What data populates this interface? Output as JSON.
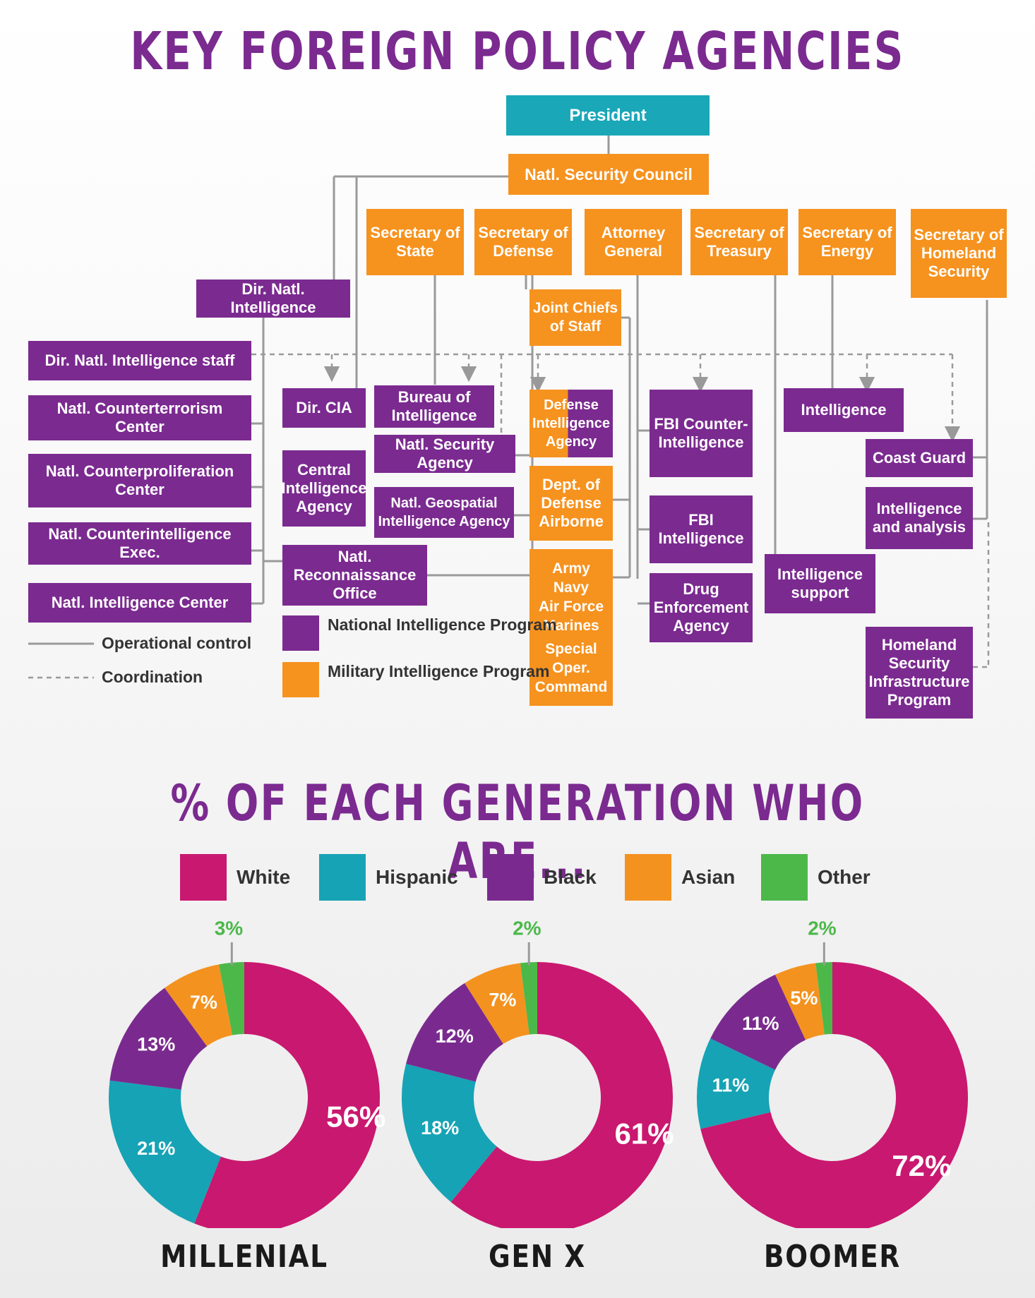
{
  "title1": "KEY FOREIGN POLICY AGENCIES",
  "title2": "% OF EACH GENERATION WHO ARE...",
  "org": {
    "president": "President",
    "nsc": "Natl. Security Council",
    "sec_state": "Secretary of State",
    "sec_defense": "Secretary of Defense",
    "attorney_general": "Attorney General",
    "sec_treasury": "Secretary of Treasury",
    "sec_energy": "Secretary of Energy",
    "sec_homeland": "Secretary of Homeland Security",
    "dni": "Dir. Natl. Intelligence",
    "dni_staff": "Dir. Natl. Intelligence staff",
    "nctc": "Natl. Counterterrorism Center",
    "ncpc": "Natl. Counterproliferation Center",
    "ncix": "Natl. Counterintelligence Exec.",
    "nic": "Natl. Intelligence Center",
    "dir_cia": "Dir. CIA",
    "cia": "Central Intelligence Agency",
    "bureau_intel": "Bureau of Intelligence",
    "nsa": "Natl. Security Agency",
    "nga": "Natl. Geospatial Intelligence Agency",
    "nro": "Natl. Reconnaissance Office",
    "jcs": "Joint Chiefs of Staff",
    "dia": "Defense Intelligence Agency",
    "dod_airborne": "Dept. of Defense Airborne",
    "services": [
      "Army",
      "Navy",
      "Air Force",
      "Marines",
      "Special Oper. Command"
    ],
    "fbi_ci": "FBI Counter-Intelligence",
    "fbi_intel": "FBI Intelligence",
    "dea": "Drug Enforcement Agency",
    "treasury_intel": "Intelligence support",
    "energy_intel": "Intelligence",
    "coast_guard": "Coast Guard",
    "dhs_ia": "Intelligence and analysis",
    "dhs_ip": "Homeland Security Infrastructure Program"
  },
  "legend": {
    "operational": "Operational control",
    "coordination": "Coordination",
    "nip": "National Intelligence Program",
    "mip": "Military Intelligence Program"
  },
  "colors": {
    "purple": "#7b2a90",
    "orange": "#f6921e",
    "teal": "#1aa7b8",
    "white": "#c9186f",
    "hispanic": "#16a3b5",
    "black": "#7a2a8f",
    "asian": "#f4921f",
    "other": "#4cb84a"
  },
  "chart_data": {
    "type": "pie",
    "categories": [
      "White",
      "Hispanic",
      "Black",
      "Asian",
      "Other"
    ],
    "series": [
      {
        "name": "MILLENIAL",
        "values": [
          56,
          21,
          13,
          7,
          3
        ]
      },
      {
        "name": "GEN X",
        "values": [
          61,
          18,
          12,
          7,
          2
        ]
      },
      {
        "name": "BOOMER",
        "values": [
          72,
          11,
          11,
          5,
          2
        ]
      }
    ],
    "legend_placement": "top"
  }
}
